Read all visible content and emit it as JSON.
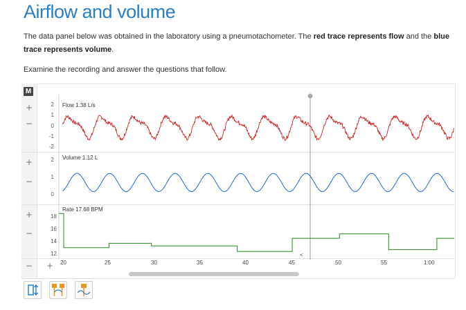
{
  "page": {
    "title": "Airflow and volume",
    "intro_1": "The data panel below was obtained in the laboratory using a pneumotachometer. The ",
    "intro_red": "red trace represents flow",
    "intro_2": " and the ",
    "intro_blue": "blue trace represents volume",
    "intro_3": ".",
    "instruction": "Examine the recording and answer the questions that follow."
  },
  "panel": {
    "badge": "M",
    "channels": [
      {
        "label": "Flow  1.38 L/s",
        "color": "#cc2222",
        "ticks": [
          "2",
          "1",
          "0",
          "-1",
          "-2"
        ]
      },
      {
        "label": "Volume  1.12 L",
        "color": "#2266cc",
        "ticks": [
          "2",
          "1",
          "0"
        ]
      },
      {
        "label": "Rate  17.68 BPM",
        "color": "#228822",
        "ticks": [
          "18",
          "16",
          "14",
          "12"
        ]
      }
    ],
    "x_ticks": [
      "20",
      "25",
      "30",
      "35",
      "40",
      "45",
      "50",
      "55",
      "1:00"
    ],
    "cursor_marker": "<",
    "side_buttons": {
      "plus": "+",
      "minus": "−"
    }
  },
  "chart_data": {
    "type": "line",
    "x_unit": "seconds",
    "x_range": [
      20,
      61
    ],
    "series": [
      {
        "name": "Flow",
        "unit": "L/s",
        "ylim": [
          -2.5,
          2.5
        ]
      },
      {
        "name": "Volume",
        "unit": "L",
        "ylim": [
          0,
          2.2
        ]
      },
      {
        "name": "Rate",
        "unit": "BPM",
        "ylim": [
          11.5,
          19
        ],
        "steps": [
          [
            20,
            18.4
          ],
          [
            20.5,
            13.0
          ],
          [
            25.2,
            13.7
          ],
          [
            29.6,
            13.3
          ],
          [
            38.5,
            12.4
          ],
          [
            44.2,
            14.5
          ],
          [
            49.1,
            15.2
          ],
          [
            54.2,
            12.7
          ],
          [
            59.2,
            14.5
          ],
          [
            61,
            14.5
          ]
        ]
      }
    ]
  }
}
